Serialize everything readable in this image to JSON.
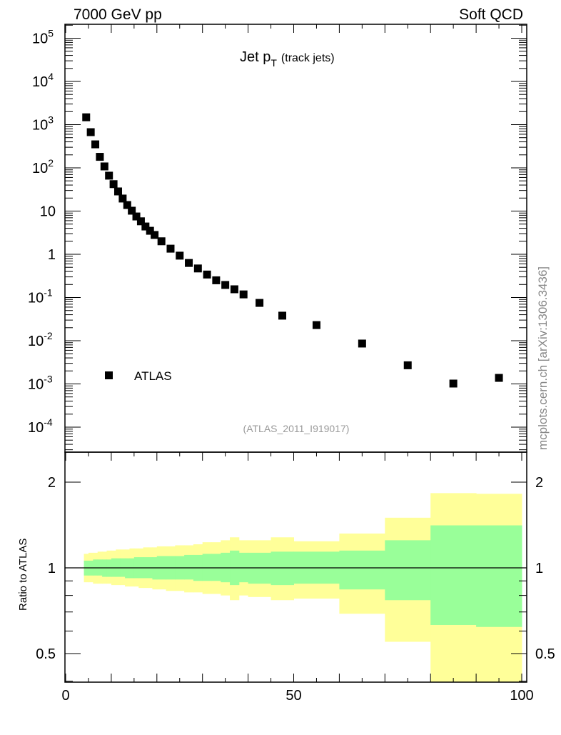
{
  "header": {
    "left": "7000 GeV pp",
    "right": "Soft QCD"
  },
  "side_label": "mcplots.cern.ch [arXiv:1306.3436]",
  "chart_data": [
    {
      "type": "scatter",
      "title_main": "Jet p",
      "title_sub": "T",
      "title_extra": "(track jets)",
      "analysis_label": "(ATLAS_2011_I919017)",
      "yscale": "log",
      "ylim": [
        2.63e-05,
        214000
      ],
      "xlim": [
        0,
        100
      ],
      "ytick_labels": [
        {
          "base": "10",
          "exp": "5",
          "value": 100000
        },
        {
          "base": "10",
          "exp": "4",
          "value": 10000
        },
        {
          "base": "10",
          "exp": "3",
          "value": 1000
        },
        {
          "base": "10",
          "exp": "2",
          "value": 100
        },
        {
          "base": "10",
          "exp": "",
          "value": 10
        },
        {
          "base": "1",
          "exp": "",
          "value": 1
        },
        {
          "base": "10",
          "exp": "-1",
          "value": 0.1
        },
        {
          "base": "10",
          "exp": "-2",
          "value": 0.01
        },
        {
          "base": "10",
          "exp": "-3",
          "value": 0.001
        },
        {
          "base": "10",
          "exp": "-4",
          "value": 0.0001
        }
      ],
      "legend": {
        "label": "ATLAS",
        "placement": "bottom-left"
      },
      "series": [
        {
          "name": "ATLAS",
          "color": "#000000",
          "x": [
            4.5,
            5.5,
            6.5,
            7.5,
            8.5,
            9.5,
            10.5,
            11.5,
            12.5,
            13.5,
            14.5,
            15.5,
            16.5,
            17.5,
            18.5,
            19.5,
            21,
            23,
            25,
            27,
            29,
            31,
            33,
            35,
            37,
            39,
            42.5,
            47.5,
            55,
            65,
            75,
            85,
            95
          ],
          "y": [
            1480,
            670,
            350,
            180,
            108,
            66,
            42,
            28.5,
            19.5,
            13.8,
            10.2,
            7.5,
            5.8,
            4.4,
            3.5,
            2.8,
            2.0,
            1.35,
            0.93,
            0.63,
            0.47,
            0.34,
            0.25,
            0.195,
            0.155,
            0.118,
            0.075,
            0.038,
            0.023,
            0.0086,
            0.0027,
            0.00102,
            0.00138
          ]
        }
      ]
    },
    {
      "type": "area",
      "ylabel": "Ratio to ATLAS",
      "yscale": "log",
      "ylim": [
        0.4,
        2.27
      ],
      "ytick_labels": [
        {
          "label": "2",
          "value": 2
        },
        {
          "label": "1",
          "value": 1
        },
        {
          "label": "0.5",
          "value": 0.5
        }
      ],
      "xlabel_ticks": [
        {
          "label": "0",
          "value": 0
        },
        {
          "label": "50",
          "value": 50
        },
        {
          "label": "100",
          "value": 100
        }
      ],
      "bin_edges": [
        4,
        5,
        6,
        7,
        8,
        9,
        10,
        11,
        12,
        13,
        14,
        15,
        16,
        17,
        18,
        19,
        20,
        22,
        24,
        26,
        28,
        30,
        32,
        34,
        36,
        38,
        40,
        45,
        50,
        60,
        70,
        80,
        90,
        100
      ],
      "yellow_band": {
        "color": "#ffff99",
        "upper": [
          1.12,
          1.13,
          1.13,
          1.14,
          1.14,
          1.15,
          1.15,
          1.16,
          1.16,
          1.16,
          1.17,
          1.17,
          1.17,
          1.18,
          1.18,
          1.18,
          1.19,
          1.19,
          1.2,
          1.2,
          1.21,
          1.23,
          1.23,
          1.25,
          1.28,
          1.25,
          1.25,
          1.28,
          1.24,
          1.32,
          1.5,
          1.83,
          1.82
        ],
        "lower": [
          0.89,
          0.89,
          0.88,
          0.88,
          0.88,
          0.88,
          0.87,
          0.87,
          0.87,
          0.86,
          0.86,
          0.86,
          0.85,
          0.85,
          0.85,
          0.84,
          0.84,
          0.83,
          0.83,
          0.82,
          0.82,
          0.81,
          0.81,
          0.8,
          0.77,
          0.8,
          0.79,
          0.77,
          0.78,
          0.69,
          0.55,
          0.35,
          0.35
        ]
      },
      "green_band": {
        "color": "#99ff99",
        "upper": [
          1.06,
          1.06,
          1.07,
          1.07,
          1.07,
          1.07,
          1.08,
          1.08,
          1.08,
          1.08,
          1.08,
          1.09,
          1.09,
          1.09,
          1.09,
          1.09,
          1.1,
          1.1,
          1.1,
          1.11,
          1.11,
          1.12,
          1.12,
          1.13,
          1.15,
          1.13,
          1.13,
          1.14,
          1.14,
          1.15,
          1.25,
          1.41,
          1.41
        ],
        "lower": [
          0.94,
          0.94,
          0.94,
          0.94,
          0.93,
          0.93,
          0.93,
          0.93,
          0.93,
          0.92,
          0.92,
          0.92,
          0.92,
          0.92,
          0.92,
          0.91,
          0.91,
          0.91,
          0.91,
          0.91,
          0.9,
          0.9,
          0.9,
          0.89,
          0.87,
          0.89,
          0.88,
          0.87,
          0.88,
          0.84,
          0.77,
          0.63,
          0.62
        ]
      },
      "reference_line": 1
    }
  ]
}
